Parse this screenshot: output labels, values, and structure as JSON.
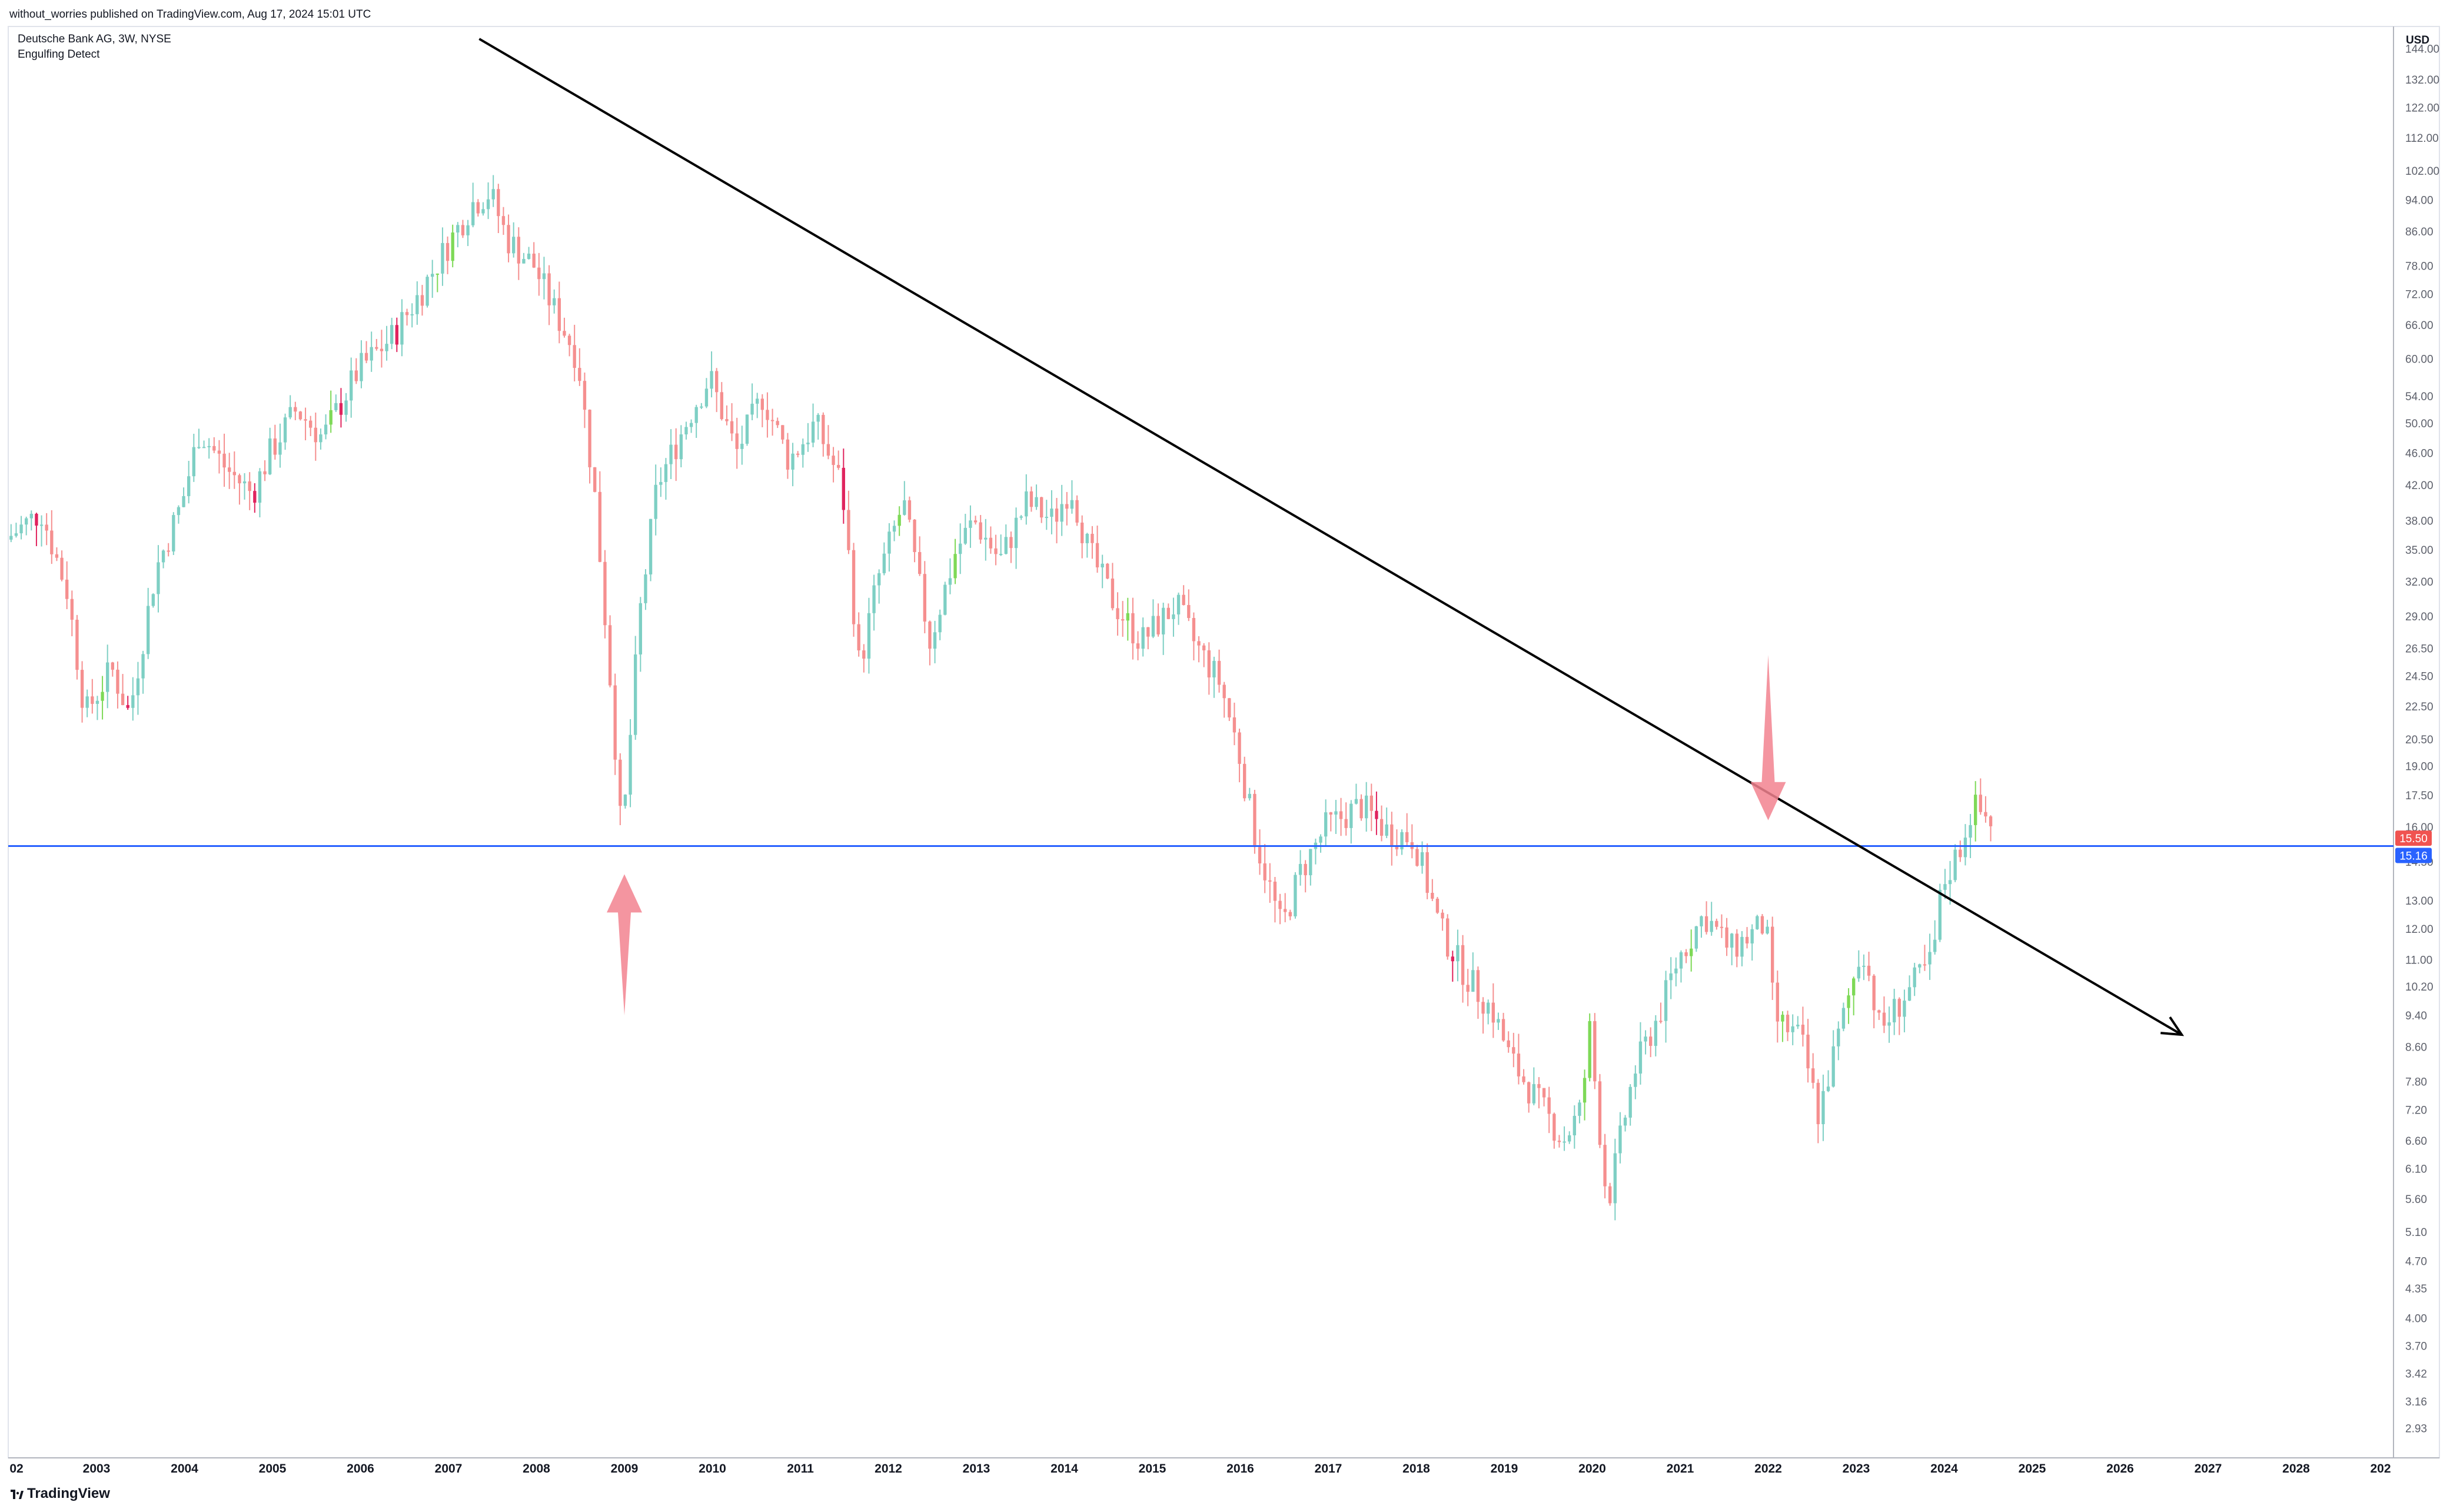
{
  "header": {
    "published_by": "without_worries published on TradingView.com, Aug 17, 2024 15:01 UTC"
  },
  "legend": {
    "symbol_line": "Deutsche Bank AG, 3W, NYSE",
    "indicator": "Engulfing Detect"
  },
  "footer": {
    "brand": "TradingView"
  },
  "colors": {
    "bull": "#7ecfc4",
    "bear": "#f58f8f",
    "engulf_bull": "#7ed957",
    "engulf_bear": "#e0245e",
    "support_line": "#2962ff",
    "trendline": "#000000",
    "arrow": "#f2838f",
    "last_price_badge": "#f05350",
    "support_badge": "#2962ff"
  },
  "chart_data": {
    "type": "candlestick",
    "title": "Deutsche Bank AG, 3W, NYSE",
    "yscale": "log",
    "ylabel": "USD",
    "ylim": [
      2.8,
      150
    ],
    "xlim": [
      2002.0,
      2029.0
    ],
    "y_ticks": [
      "144.00",
      "132.00",
      "122.00",
      "112.00",
      "102.00",
      "94.00",
      "86.00",
      "78.00",
      "72.00",
      "66.00",
      "60.00",
      "54.00",
      "50.00",
      "46.00",
      "42.00",
      "38.00",
      "35.00",
      "32.00",
      "29.00",
      "26.50",
      "24.50",
      "22.50",
      "20.50",
      "19.00",
      "17.50",
      "16.00",
      "14.50",
      "13.00",
      "12.00",
      "11.00",
      "10.20",
      "9.40",
      "8.60",
      "7.80",
      "7.20",
      "6.60",
      "6.10",
      "5.60",
      "5.10",
      "4.70",
      "4.35",
      "4.00",
      "3.70",
      "3.42",
      "3.16",
      "2.93"
    ],
    "x_ticks": [
      "02",
      "2003",
      "2004",
      "2005",
      "2006",
      "2007",
      "2008",
      "2009",
      "2010",
      "2011",
      "2012",
      "2013",
      "2014",
      "2015",
      "2016",
      "2017",
      "2018",
      "2019",
      "2020",
      "2021",
      "2022",
      "2023",
      "2024",
      "2025",
      "2026",
      "2027",
      "2028",
      "202"
    ],
    "price_path": [
      [
        2002.0,
        36
      ],
      [
        2002.4,
        39
      ],
      [
        2002.7,
        31
      ],
      [
        2002.9,
        22
      ],
      [
        2003.2,
        25
      ],
      [
        2003.4,
        22
      ],
      [
        2003.7,
        33
      ],
      [
        2004.0,
        40
      ],
      [
        2004.2,
        49
      ],
      [
        2004.5,
        44
      ],
      [
        2004.8,
        41
      ],
      [
        2005.0,
        46
      ],
      [
        2005.3,
        52
      ],
      [
        2005.6,
        48
      ],
      [
        2006.0,
        58
      ],
      [
        2006.4,
        64
      ],
      [
        2006.7,
        72
      ],
      [
        2007.0,
        82
      ],
      [
        2007.3,
        93
      ],
      [
        2007.5,
        96
      ],
      [
        2007.7,
        84
      ],
      [
        2008.0,
        78
      ],
      [
        2008.2,
        70
      ],
      [
        2008.5,
        60
      ],
      [
        2008.7,
        40
      ],
      [
        2008.9,
        22
      ],
      [
        2009.0,
        15.2
      ],
      [
        2009.2,
        29
      ],
      [
        2009.4,
        42
      ],
      [
        2009.8,
        52
      ],
      [
        2010.0,
        57
      ],
      [
        2010.3,
        46
      ],
      [
        2010.6,
        54
      ],
      [
        2010.9,
        45
      ],
      [
        2011.2,
        50
      ],
      [
        2011.5,
        42
      ],
      [
        2011.7,
        25
      ],
      [
        2011.9,
        32
      ],
      [
        2012.2,
        40
      ],
      [
        2012.5,
        27
      ],
      [
        2012.8,
        35
      ],
      [
        2013.0,
        38
      ],
      [
        2013.3,
        34
      ],
      [
        2013.6,
        40
      ],
      [
        2013.9,
        38
      ],
      [
        2014.1,
        42
      ],
      [
        2014.3,
        35
      ],
      [
        2014.6,
        30
      ],
      [
        2014.9,
        27
      ],
      [
        2015.3,
        30
      ],
      [
        2015.5,
        27
      ],
      [
        2015.8,
        24
      ],
      [
        2016.0,
        20
      ],
      [
        2016.2,
        15.5
      ],
      [
        2016.5,
        12
      ],
      [
        2016.7,
        14
      ],
      [
        2017.0,
        16
      ],
      [
        2017.4,
        17
      ],
      [
        2017.7,
        15.8
      ],
      [
        2018.0,
        15.5
      ],
      [
        2018.3,
        12
      ],
      [
        2018.6,
        10.5
      ],
      [
        2018.9,
        9.5
      ],
      [
        2019.1,
        8.3
      ],
      [
        2019.4,
        7.4
      ],
      [
        2019.7,
        6.6
      ],
      [
        2019.9,
        7.2
      ],
      [
        2020.0,
        9.0
      ],
      [
        2020.2,
        5.5
      ],
      [
        2020.5,
        8.0
      ],
      [
        2020.8,
        9.5
      ],
      [
        2021.0,
        11.0
      ],
      [
        2021.3,
        12.5
      ],
      [
        2021.6,
        11.3
      ],
      [
        2022.0,
        12.2
      ],
      [
        2022.1,
        9.3
      ],
      [
        2022.4,
        8.8
      ],
      [
        2022.6,
        7.1
      ],
      [
        2022.9,
        9.5
      ],
      [
        2023.1,
        11.5
      ],
      [
        2023.3,
        9.0
      ],
      [
        2023.6,
        10.0
      ],
      [
        2023.9,
        11.0
      ],
      [
        2024.0,
        13.5
      ],
      [
        2024.2,
        15.0
      ],
      [
        2024.35,
        17.0
      ],
      [
        2024.55,
        16.3
      ]
    ],
    "annotations": {
      "support_level": 15.16,
      "last_price": 15.5,
      "last_price_label": "15.50",
      "support_label": "15.16",
      "trendline": {
        "x1": 2007.35,
        "y1": 148,
        "x2": 2026.7,
        "y2": 8.9
      },
      "up_arrow": {
        "x": 2009.0,
        "tip": 14.0,
        "tail": 9.4
      },
      "down_arrow": {
        "x": 2022.0,
        "tip": 16.3,
        "tail": 26.0
      }
    }
  }
}
